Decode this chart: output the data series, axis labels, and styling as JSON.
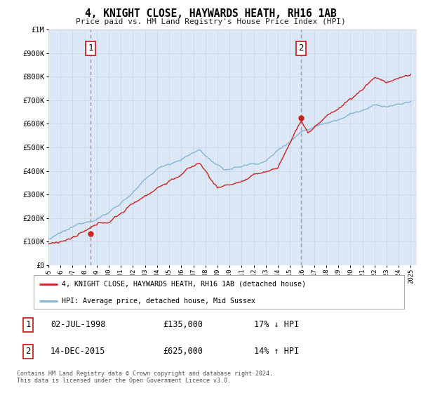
{
  "title": "4, KNIGHT CLOSE, HAYWARDS HEATH, RH16 1AB",
  "subtitle": "Price paid vs. HM Land Registry's House Price Index (HPI)",
  "legend_line1": "4, KNIGHT CLOSE, HAYWARDS HEATH, RH16 1AB (detached house)",
  "legend_line2": "HPI: Average price, detached house, Mid Sussex",
  "sale1_date_label": "02-JUL-1998",
  "sale1_price": 135000,
  "sale1_pct": "17% ↓ HPI",
  "sale2_date_label": "14-DEC-2015",
  "sale2_price": 625000,
  "sale2_pct": "14% ↑ HPI",
  "footnote": "Contains HM Land Registry data © Crown copyright and database right 2024.\nThis data is licensed under the Open Government Licence v3.0.",
  "ylim": [
    0,
    1000000
  ],
  "xlim_start": 1995.0,
  "xlim_end": 2025.5,
  "sale1_x": 1998.5,
  "sale2_x": 2015.92,
  "background_color": "#ffffff",
  "plot_bg": "#dce8f5",
  "red_color": "#cc2222",
  "blue_color": "#7ab0d4",
  "dashed1_color": "#dd4444",
  "dashed2_color": "#888888"
}
